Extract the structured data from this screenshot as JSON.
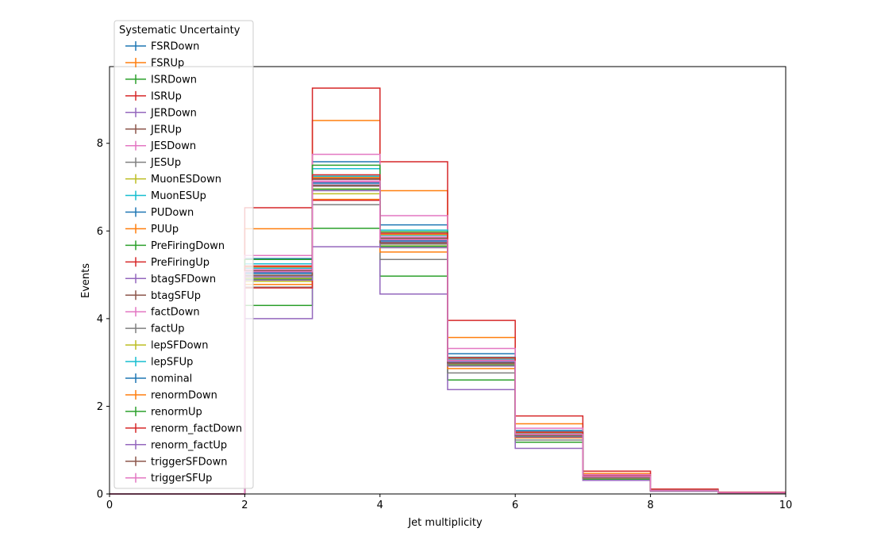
{
  "chart_data": {
    "type": "line",
    "xlabel": "Jet multiplicity",
    "ylabel": "Events",
    "xlim": [
      0,
      10
    ],
    "ylim": [
      0,
      9.75
    ],
    "x_ticks": [
      "0",
      "2",
      "4",
      "6",
      "8",
      "10"
    ],
    "y_ticks": [
      "0",
      "2",
      "4",
      "6",
      "8"
    ],
    "bin_edges": [
      0,
      1,
      2,
      3,
      4,
      5,
      6,
      7,
      8,
      9,
      10
    ],
    "grid": false,
    "legend": {
      "title": "Systematic Uncertainty",
      "placement": "upper-left"
    },
    "series": [
      {
        "name": "FSRDown",
        "color": "#1f77b4",
        "values": [
          0,
          0,
          5.37,
          7.58,
          6.14,
          3.2,
          1.45,
          0.42,
          0.09,
          0.03
        ]
      },
      {
        "name": "FSRUp",
        "color": "#ff7f0e",
        "values": [
          0,
          0,
          6.05,
          8.52,
          6.92,
          3.57,
          1.6,
          0.47,
          0.1,
          0.03
        ]
      },
      {
        "name": "ISRDown",
        "color": "#2ca02c",
        "values": [
          0,
          0,
          4.3,
          6.06,
          4.97,
          2.6,
          1.18,
          0.34,
          0.07,
          0.02
        ]
      },
      {
        "name": "ISRUp",
        "color": "#d62728",
        "values": [
          0,
          0,
          6.53,
          9.26,
          7.58,
          3.96,
          1.78,
          0.52,
          0.11,
          0.04
        ]
      },
      {
        "name": "JERDown",
        "color": "#9467bd",
        "values": [
          0,
          0,
          4.0,
          5.64,
          4.56,
          2.38,
          1.04,
          0.31,
          0.06,
          0.02
        ]
      },
      {
        "name": "JERUp",
        "color": "#8c564b",
        "values": [
          0,
          0,
          5.1,
          7.2,
          5.85,
          3.05,
          1.38,
          0.4,
          0.08,
          0.03
        ]
      },
      {
        "name": "JESDown",
        "color": "#e377c2",
        "values": [
          0,
          0,
          5.44,
          7.75,
          6.35,
          3.32,
          1.5,
          0.44,
          0.09,
          0.03
        ]
      },
      {
        "name": "JESUp",
        "color": "#7f7f7f",
        "values": [
          0,
          0,
          4.72,
          6.6,
          5.35,
          2.76,
          1.23,
          0.36,
          0.07,
          0.02
        ]
      },
      {
        "name": "MuonESDown",
        "color": "#bcbd22",
        "values": [
          0,
          0,
          4.85,
          6.85,
          5.62,
          2.92,
          1.3,
          0.38,
          0.08,
          0.03
        ]
      },
      {
        "name": "MuonESUp",
        "color": "#17becf",
        "values": [
          0,
          0,
          5.25,
          7.42,
          6.02,
          3.12,
          1.42,
          0.41,
          0.09,
          0.03
        ]
      },
      {
        "name": "PUDown",
        "color": "#1f77b4",
        "values": [
          0,
          0,
          5.05,
          7.1,
          5.78,
          3.02,
          1.36,
          0.4,
          0.08,
          0.03
        ]
      },
      {
        "name": "PUUp",
        "color": "#ff7f0e",
        "values": [
          0,
          0,
          4.78,
          6.72,
          5.52,
          2.86,
          1.28,
          0.37,
          0.08,
          0.02
        ]
      },
      {
        "name": "PreFiringDown",
        "color": "#2ca02c",
        "values": [
          0,
          0,
          5.35,
          7.5,
          5.98,
          3.08,
          1.4,
          0.41,
          0.09,
          0.03
        ]
      },
      {
        "name": "PreFiringUp",
        "color": "#d62728",
        "values": [
          0,
          0,
          4.7,
          6.7,
          5.72,
          2.98,
          1.33,
          0.39,
          0.08,
          0.03
        ]
      },
      {
        "name": "btagSFDown",
        "color": "#9467bd",
        "values": [
          0,
          0,
          4.95,
          7.05,
          5.74,
          3.0,
          1.35,
          0.39,
          0.08,
          0.03
        ]
      },
      {
        "name": "btagSFUp",
        "color": "#8c564b",
        "values": [
          0,
          0,
          5.08,
          7.18,
          5.83,
          3.04,
          1.37,
          0.4,
          0.08,
          0.03
        ]
      },
      {
        "name": "factDown",
        "color": "#e377c2",
        "values": [
          0,
          0,
          5.12,
          7.12,
          5.86,
          3.06,
          1.38,
          0.4,
          0.08,
          0.03
        ]
      },
      {
        "name": "factUp",
        "color": "#7f7f7f",
        "values": [
          0,
          0,
          4.98,
          7.02,
          5.7,
          2.96,
          1.33,
          0.39,
          0.08,
          0.03
        ]
      },
      {
        "name": "lepSFDown",
        "color": "#bcbd22",
        "values": [
          0,
          0,
          4.92,
          6.96,
          5.66,
          2.94,
          1.31,
          0.38,
          0.08,
          0.03
        ]
      },
      {
        "name": "lepSFUp",
        "color": "#17becf",
        "values": [
          0,
          0,
          5.15,
          7.25,
          5.9,
          3.08,
          1.39,
          0.41,
          0.09,
          0.03
        ]
      },
      {
        "name": "nominal",
        "color": "#1f77b4",
        "values": [
          0,
          0,
          5.03,
          7.09,
          5.77,
          3.01,
          1.35,
          0.39,
          0.08,
          0.03
        ]
      },
      {
        "name": "renormDown",
        "color": "#ff7f0e",
        "values": [
          0,
          0,
          5.18,
          7.22,
          5.92,
          3.1,
          1.4,
          0.41,
          0.09,
          0.03
        ]
      },
      {
        "name": "renormUp",
        "color": "#2ca02c",
        "values": [
          0,
          0,
          4.9,
          6.95,
          5.65,
          2.93,
          1.31,
          0.38,
          0.08,
          0.03
        ]
      },
      {
        "name": "renorm_factDown",
        "color": "#d62728",
        "values": [
          0,
          0,
          5.2,
          7.28,
          5.95,
          3.11,
          1.41,
          0.41,
          0.09,
          0.03
        ]
      },
      {
        "name": "renorm_factUp",
        "color": "#9467bd",
        "values": [
          0,
          0,
          4.88,
          6.92,
          5.62,
          2.92,
          1.3,
          0.38,
          0.08,
          0.03
        ]
      },
      {
        "name": "triggerSFDown",
        "color": "#8c564b",
        "values": [
          0,
          0,
          4.99,
          7.04,
          5.73,
          2.99,
          1.34,
          0.39,
          0.08,
          0.03
        ]
      },
      {
        "name": "triggerSFUp",
        "color": "#e377c2",
        "values": [
          0,
          0,
          5.07,
          7.14,
          5.8,
          3.03,
          1.36,
          0.4,
          0.08,
          0.03
        ]
      }
    ]
  }
}
